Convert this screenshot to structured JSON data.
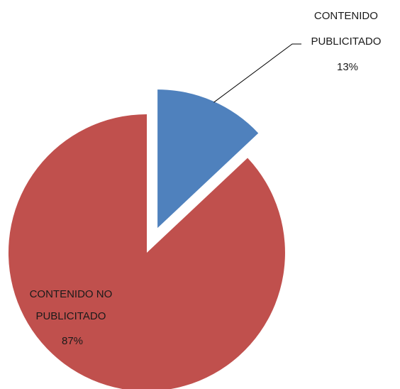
{
  "chart_data": {
    "type": "pie",
    "title": "",
    "slices": [
      {
        "label": [
          "CONTENIDO",
          "PUBLICITADO"
        ],
        "value": 13,
        "percent": "13%",
        "color": "#4F81BD",
        "exploded": true
      },
      {
        "label": [
          "CONTENIDO NO",
          "PUBLICITADO"
        ],
        "value": 87,
        "percent": "87%",
        "color": "#C0504D",
        "exploded": false
      }
    ],
    "legend": "none",
    "data_labels": "label-and-percent"
  }
}
